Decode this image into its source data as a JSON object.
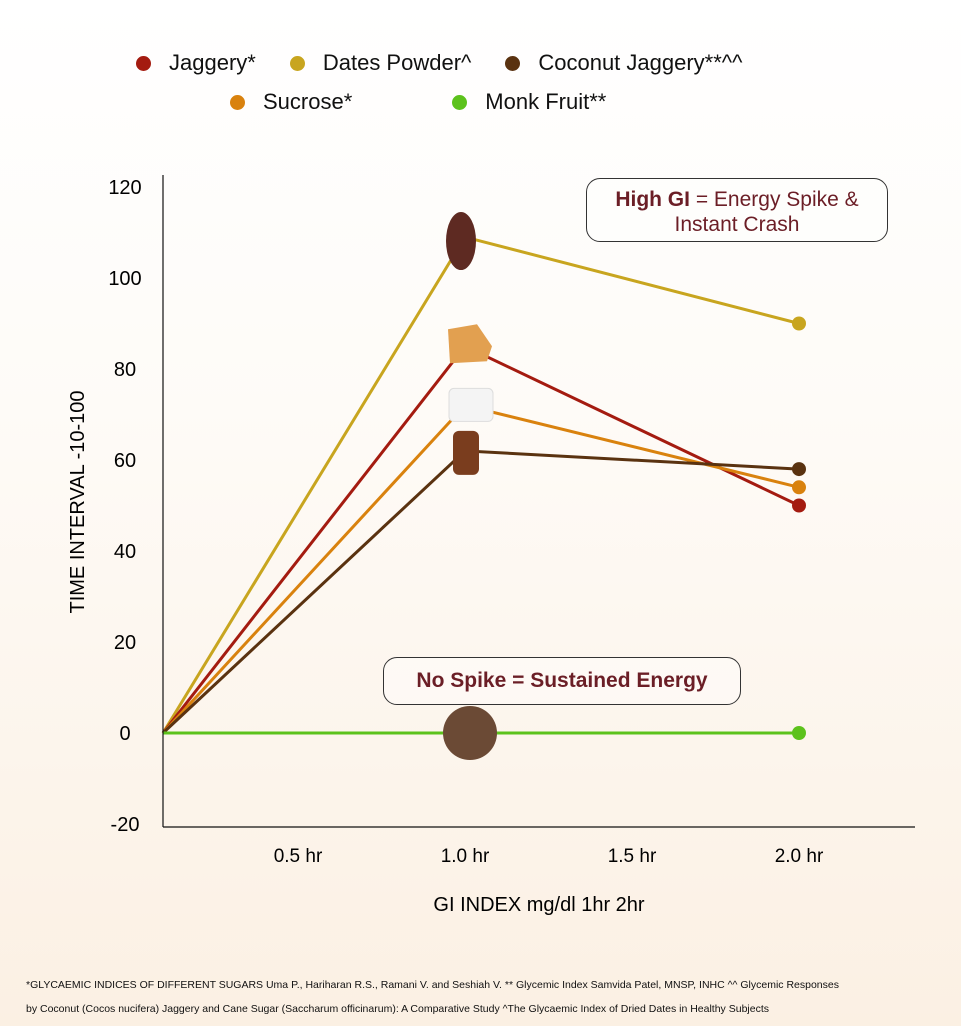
{
  "legend": [
    {
      "label": "Jaggery*",
      "color": "#a41b10"
    },
    {
      "label": "Dates Powder^",
      "color": "#c8a51f"
    },
    {
      "label": "Coconut Jaggery**^^",
      "color": "#5a3210"
    },
    {
      "label": "Sucrose*",
      "color": "#d9820e"
    },
    {
      "label": "Monk Fruit**",
      "color": "#5cc21c"
    }
  ],
  "annotations": {
    "high_gi_bold": "High GI",
    "high_gi_rest": " = Energy Spike & Instant Crash",
    "no_spike": "No Spike = Sustained Energy"
  },
  "chart_data": {
    "type": "line",
    "xlabel": "GI INDEX mg/dl 1hr 2hr",
    "ylabel": "TIME INTERVAL -10-100",
    "x_ticks": [
      "0.5 hr",
      "1.0 hr",
      "1.5 hr",
      "2.0 hr"
    ],
    "x_tick_values": [
      0.5,
      1.0,
      1.5,
      2.0
    ],
    "y_ticks": [
      "120",
      "100",
      "80",
      "60",
      "40",
      "20",
      "0",
      "-20"
    ],
    "y_tick_values": [
      120,
      100,
      80,
      60,
      40,
      20,
      0,
      -20
    ],
    "ylim": [
      -20,
      120
    ],
    "x": [
      0,
      1.0,
      2.0
    ],
    "series": [
      {
        "name": "Dates Powder^",
        "color": "#c8a51f",
        "values": [
          0,
          109,
          90
        ]
      },
      {
        "name": "Jaggery*",
        "color": "#a41b10",
        "values": [
          0,
          85,
          50
        ]
      },
      {
        "name": "Sucrose*",
        "color": "#d9820e",
        "values": [
          0,
          72,
          54
        ]
      },
      {
        "name": "Coconut Jaggery**^^",
        "color": "#5a3210",
        "values": [
          0,
          62,
          58
        ]
      },
      {
        "name": "Monk Fruit**",
        "color": "#5cc21c",
        "values": [
          0,
          0,
          0
        ]
      }
    ]
  },
  "footnote_line1": "*GLYCAEMIC INDICES OF DIFFERENT SUGARS Uma P., Hariharan R.S., Ramani V. and Seshiah V.   ** Glycemic Index Samvida Patel, MNSP, INHC   ^^ Glycemic Responses",
  "footnote_line2": "by Coconut (Cocos nucifera) Jaggery and Cane Sugar (Saccharum officinarum): A Comparative Study  ^The Glycaemic Index of Dried Dates in Healthy Subjects"
}
